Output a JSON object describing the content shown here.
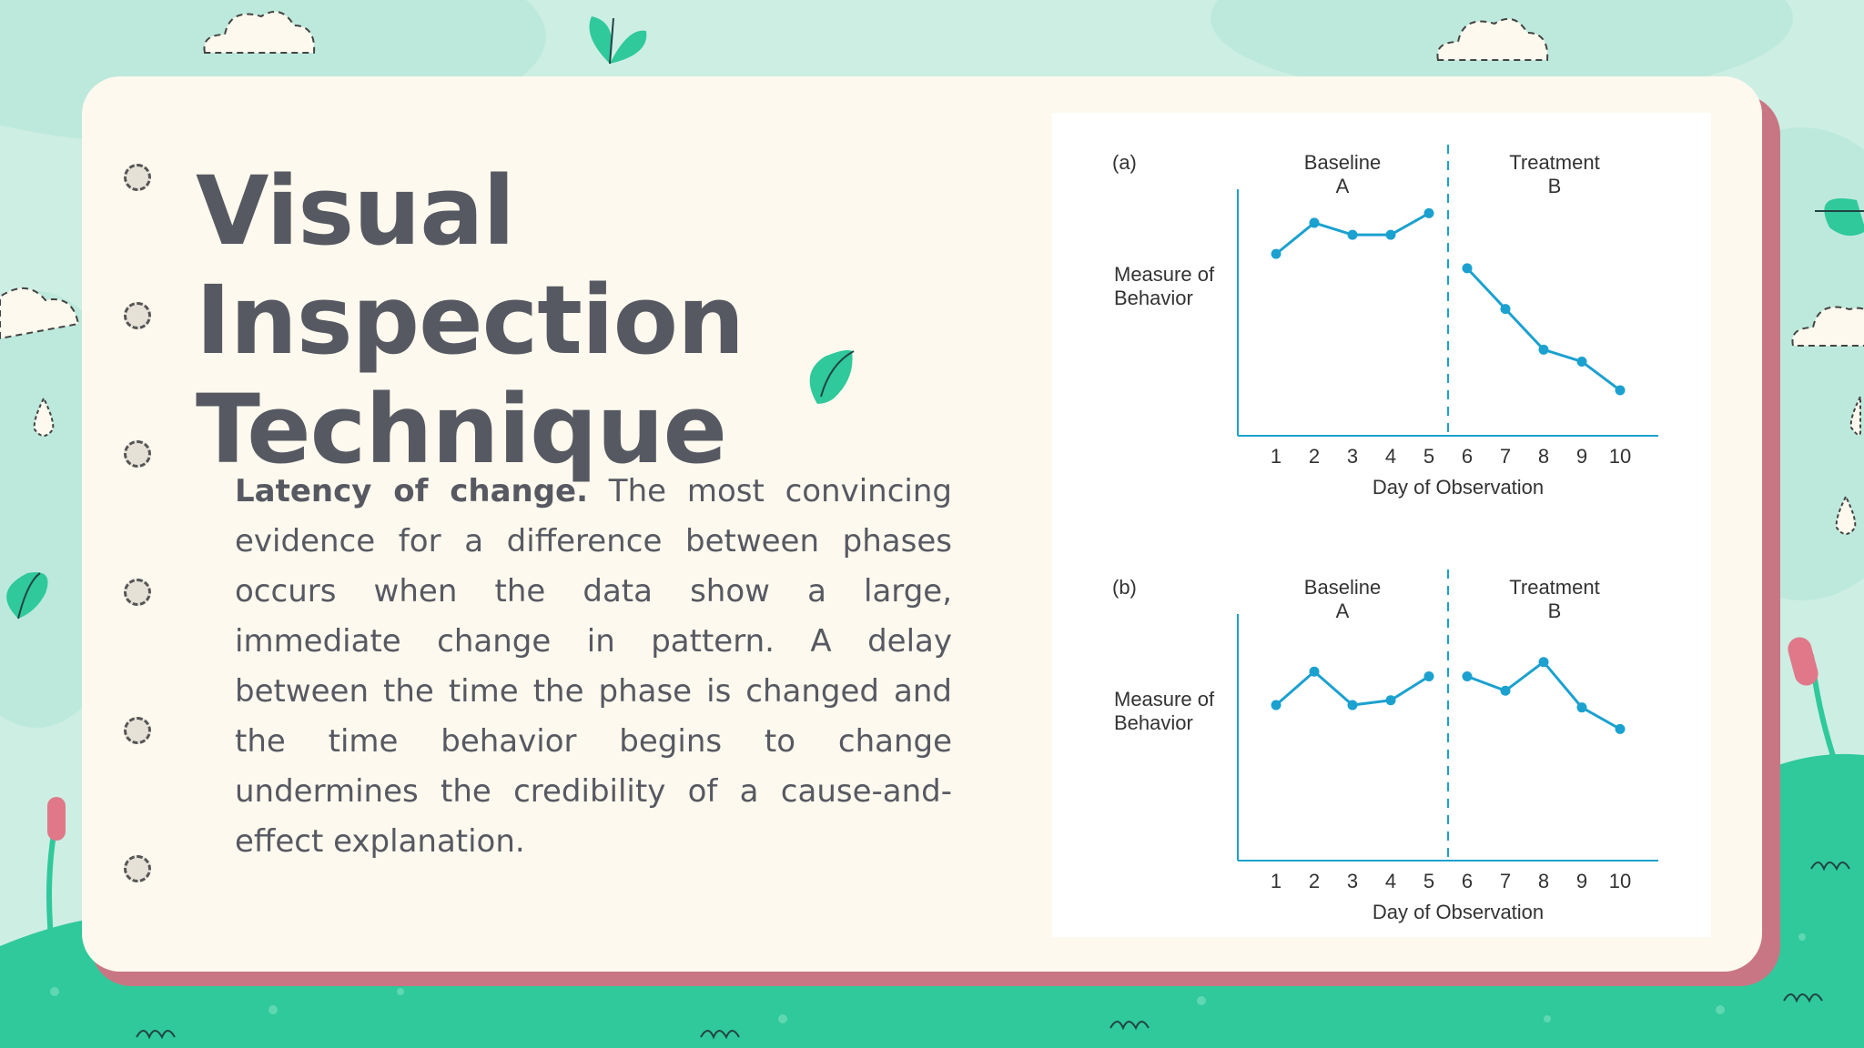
{
  "slide": {
    "title_line1": "Visual Inspection",
    "title_line2": "Technique",
    "body_bold": "Latency of change.",
    "body_text": " The most convincing evidence for a difference between phases occurs when the data show a large, immediate change in pattern. A delay between the time the phase is changed and the time behavior begins to change undermines the credibility of a cause-and-effect explanation."
  },
  "colors": {
    "background": "#cdeee3",
    "ground": "#2fc99b",
    "card": "#fdf9ee",
    "card_shadow": "#c97684",
    "title_text": "#575962",
    "line": "#1ba1cf"
  },
  "chart_data": [
    {
      "type": "line",
      "panel_label": "(a)",
      "phase_labels": [
        {
          "line1": "Baseline",
          "line2": "A"
        },
        {
          "line1": "Treatment",
          "line2": "B"
        }
      ],
      "ylabel_line1": "Measure of",
      "ylabel_line2": "Behavior",
      "xlabel": "Day of Observation",
      "x": [
        1,
        2,
        3,
        4,
        5,
        6,
        7,
        8,
        9,
        10
      ],
      "phase_change_after_x": 5,
      "series": [
        {
          "phase": "A",
          "x": [
            1,
            2,
            3,
            4,
            5
          ],
          "values": [
            76,
            89,
            84,
            84,
            93
          ]
        },
        {
          "phase": "B",
          "x": [
            6,
            7,
            8,
            9,
            10
          ],
          "values": [
            70,
            53,
            36,
            31,
            19
          ]
        }
      ],
      "ylim": [
        0,
        100
      ],
      "grid": false
    },
    {
      "type": "line",
      "panel_label": "(b)",
      "phase_labels": [
        {
          "line1": "Baseline",
          "line2": "A"
        },
        {
          "line1": "Treatment",
          "line2": "B"
        }
      ],
      "ylabel_line1": "Measure of",
      "ylabel_line2": "Behavior",
      "xlabel": "Day of Observation",
      "x": [
        1,
        2,
        3,
        4,
        5,
        6,
        7,
        8,
        9,
        10
      ],
      "phase_change_after_x": 5,
      "series": [
        {
          "phase": "A",
          "x": [
            1,
            2,
            3,
            4,
            5
          ],
          "values": [
            65,
            79,
            65,
            67,
            77
          ]
        },
        {
          "phase": "B",
          "x": [
            6,
            7,
            8,
            9,
            10
          ],
          "values": [
            77,
            71,
            83,
            64,
            55
          ]
        }
      ],
      "ylim": [
        0,
        100
      ],
      "grid": false
    }
  ]
}
